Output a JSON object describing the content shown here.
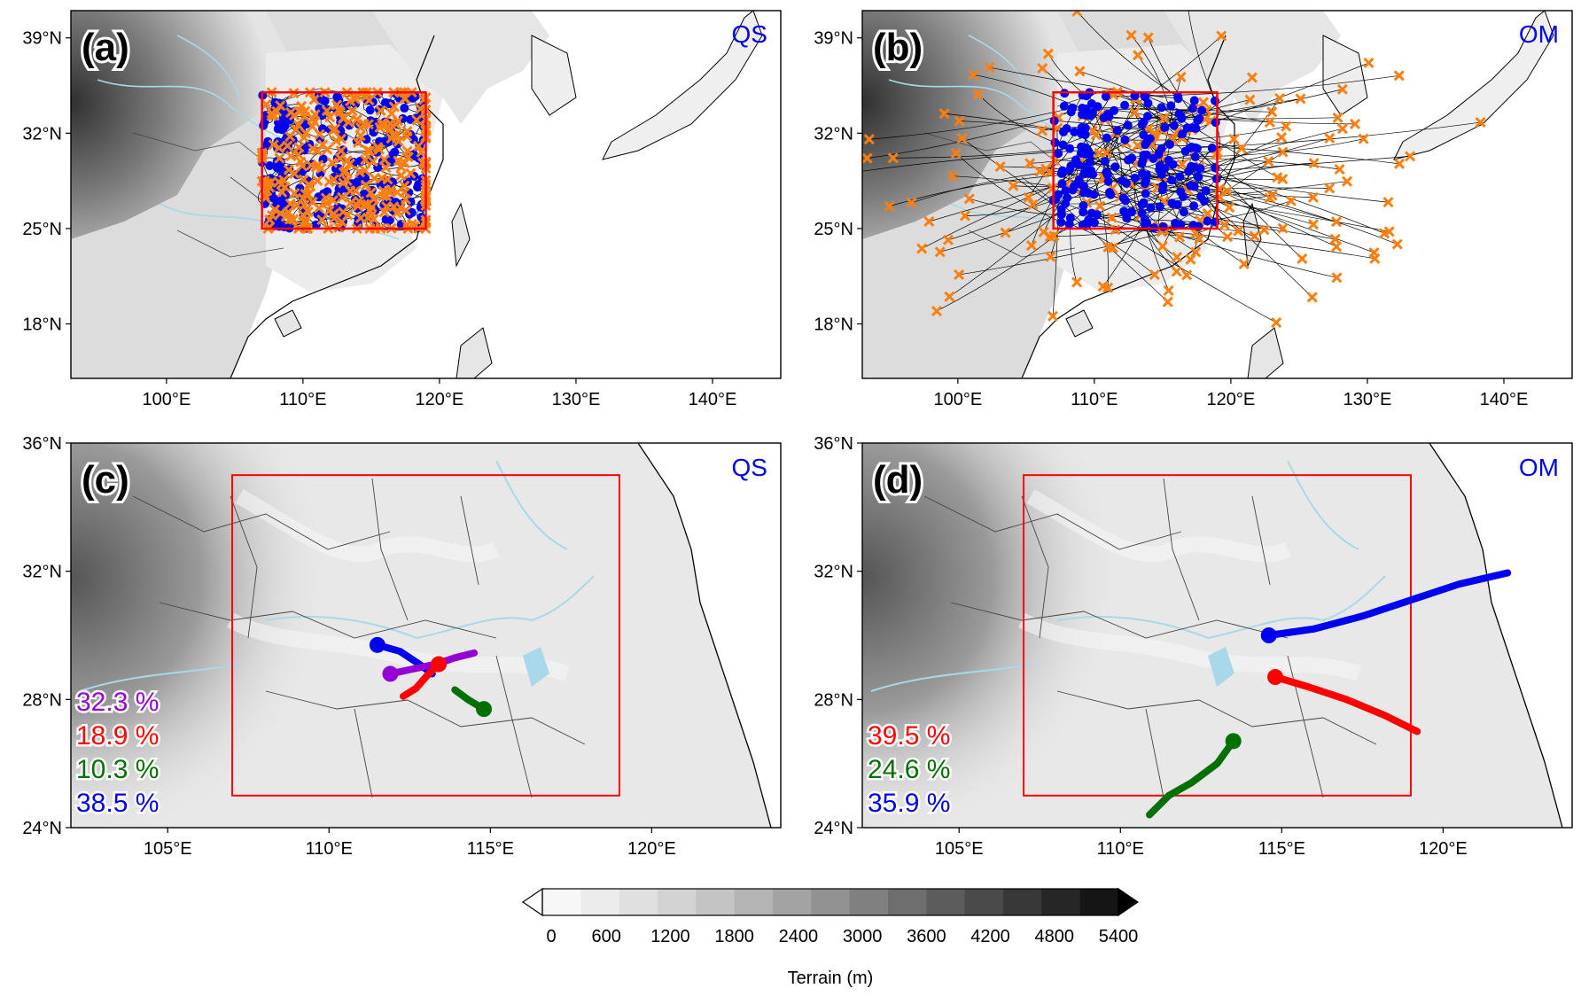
{
  "panels": [
    {
      "id": "a",
      "label": "(a)",
      "tag": "QS",
      "lon_range": [
        93,
        145
      ],
      "lat_range": [
        14,
        41
      ],
      "lon_ticks": [
        {
          "v": 100,
          "t": "100°E"
        },
        {
          "v": 110,
          "t": "110°E"
        },
        {
          "v": 120,
          "t": "120°E"
        },
        {
          "v": 130,
          "t": "130°E"
        },
        {
          "v": 140,
          "t": "140°E"
        }
      ],
      "lat_ticks": [
        {
          "v": 18,
          "t": "18°N"
        },
        {
          "v": 25,
          "t": "25°N"
        },
        {
          "v": 32,
          "t": "32°N"
        },
        {
          "v": 39,
          "t": "39°N"
        }
      ],
      "box": {
        "lon": [
          107,
          119
        ],
        "lat": [
          25,
          35
        ]
      },
      "tracks_mode": "dense"
    },
    {
      "id": "b",
      "label": "(b)",
      "tag": "OM",
      "lon_range": [
        93,
        145
      ],
      "lat_range": [
        14,
        41
      ],
      "lon_ticks": [
        {
          "v": 100,
          "t": "100°E"
        },
        {
          "v": 110,
          "t": "110°E"
        },
        {
          "v": 120,
          "t": "120°E"
        },
        {
          "v": 130,
          "t": "130°E"
        },
        {
          "v": 140,
          "t": "140°E"
        }
      ],
      "lat_ticks": [
        {
          "v": 18,
          "t": "18°N"
        },
        {
          "v": 25,
          "t": "25°N"
        },
        {
          "v": 32,
          "t": "32°N"
        },
        {
          "v": 39,
          "t": "39°N"
        }
      ],
      "box": {
        "lon": [
          107,
          119
        ],
        "lat": [
          25,
          35
        ]
      },
      "tracks_mode": "spread"
    },
    {
      "id": "c",
      "label": "(c)",
      "tag": "QS",
      "lon_range": [
        102,
        124
      ],
      "lat_range": [
        24,
        36
      ],
      "lon_ticks": [
        {
          "v": 105,
          "t": "105°E"
        },
        {
          "v": 110,
          "t": "110°E"
        },
        {
          "v": 115,
          "t": "115°E"
        },
        {
          "v": 120,
          "t": "120°E"
        }
      ],
      "lat_ticks": [
        {
          "v": 24,
          "t": "24°N"
        },
        {
          "v": 28,
          "t": "28°N"
        },
        {
          "v": 32,
          "t": "32°N"
        },
        {
          "v": 36,
          "t": "36°N"
        }
      ],
      "box": {
        "lon": [
          107,
          119
        ],
        "lat": [
          25,
          35
        ]
      },
      "percentages": [
        {
          "text": "32.3 %",
          "color": "#9400d3"
        },
        {
          "text": "18.9 %",
          "color": "#ff0000"
        },
        {
          "text": "10.3 %",
          "color": "#007000"
        },
        {
          "text": "38.5 %",
          "color": "#0000ee"
        }
      ],
      "clusters": [
        {
          "color": "#0000ee",
          "points": [
            [
              111.5,
              29.7
            ],
            [
              112.2,
              29.5
            ],
            [
              112.8,
              29.1
            ],
            [
              113.2,
              28.8
            ]
          ]
        },
        {
          "color": "#9400d3",
          "points": [
            [
              111.9,
              28.8
            ],
            [
              112.6,
              28.95
            ],
            [
              113.3,
              29.1
            ],
            [
              113.9,
              29.3
            ],
            [
              114.5,
              29.45
            ]
          ]
        },
        {
          "color": "#ff0000",
          "points": [
            [
              113.4,
              29.1
            ],
            [
              113.0,
              28.7
            ],
            [
              112.7,
              28.35
            ],
            [
              112.3,
              28.1
            ]
          ]
        },
        {
          "color": "#007000",
          "points": [
            [
              114.8,
              27.7
            ],
            [
              114.3,
              28.0
            ],
            [
              113.9,
              28.3
            ]
          ]
        }
      ]
    },
    {
      "id": "d",
      "label": "(d)",
      "tag": "OM",
      "lon_range": [
        102,
        124
      ],
      "lat_range": [
        24,
        36
      ],
      "lon_ticks": [
        {
          "v": 105,
          "t": "105°E"
        },
        {
          "v": 110,
          "t": "110°E"
        },
        {
          "v": 115,
          "t": "115°E"
        },
        {
          "v": 120,
          "t": "120°E"
        }
      ],
      "lat_ticks": [
        {
          "v": 24,
          "t": "24°N"
        },
        {
          "v": 28,
          "t": "28°N"
        },
        {
          "v": 32,
          "t": "32°N"
        },
        {
          "v": 36,
          "t": "36°N"
        }
      ],
      "box": {
        "lon": [
          107,
          119
        ],
        "lat": [
          25,
          35
        ]
      },
      "percentages": [
        {
          "text": "39.5 %",
          "color": "#ff0000"
        },
        {
          "text": "24.6 %",
          "color": "#007000"
        },
        {
          "text": "35.9 %",
          "color": "#0000ee"
        }
      ],
      "clusters": [
        {
          "color": "#0000ee",
          "points": [
            [
              114.6,
              30.0
            ],
            [
              116.0,
              30.2
            ],
            [
              117.5,
              30.6
            ],
            [
              119.0,
              31.1
            ],
            [
              120.5,
              31.6
            ],
            [
              122.0,
              31.95
            ]
          ]
        },
        {
          "color": "#ff0000",
          "points": [
            [
              114.8,
              28.7
            ],
            [
              115.8,
              28.4
            ],
            [
              117.0,
              28.0
            ],
            [
              118.2,
              27.5
            ],
            [
              119.2,
              27.0
            ]
          ]
        },
        {
          "color": "#007000",
          "points": [
            [
              113.5,
              26.7
            ],
            [
              113.0,
              26.0
            ],
            [
              112.2,
              25.4
            ],
            [
              111.5,
              25.0
            ],
            [
              110.9,
              24.4
            ]
          ]
        }
      ]
    }
  ],
  "colorbar": {
    "title": "Terrain (m)",
    "ticks": [
      "0",
      "600",
      "1200",
      "1800",
      "2400",
      "3000",
      "3600",
      "4200",
      "4800",
      "5400"
    ],
    "colors": [
      "#f7f7f7",
      "#ececec",
      "#e0e0e0",
      "#d3d3d3",
      "#c4c4c4",
      "#b4b4b4",
      "#a3a3a3",
      "#929292",
      "#808080",
      "#6e6e6e",
      "#5c5c5c",
      "#4a4a4a",
      "#383838",
      "#262626",
      "#151515"
    ]
  },
  "legend_colors": {
    "box": "#ff0000",
    "start_marker": "#0000ee",
    "end_marker": "#ff7f0e",
    "track": "#000000",
    "river": "#a8d8ea"
  }
}
